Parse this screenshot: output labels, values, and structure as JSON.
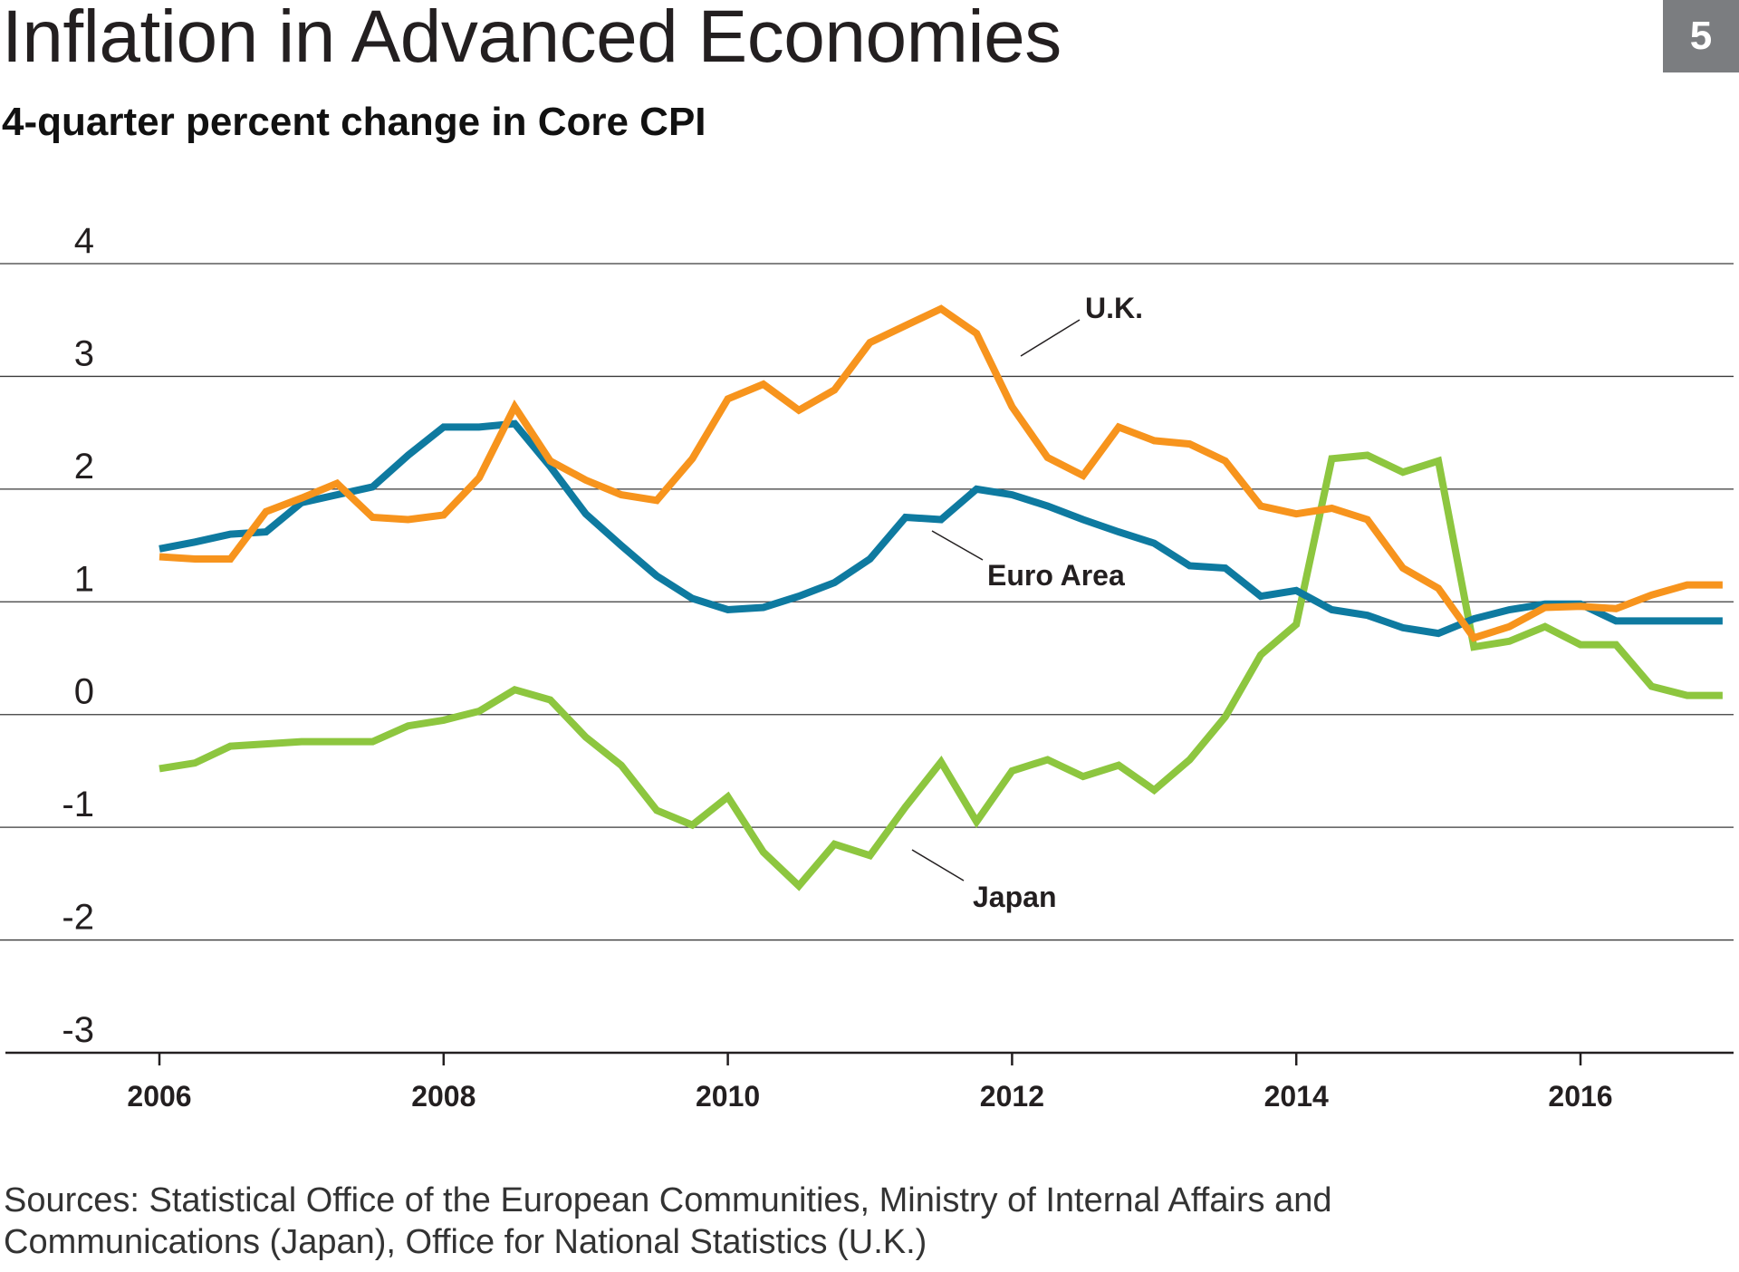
{
  "header": {
    "title": "Inflation in Advanced Economies",
    "subtitle": "4-quarter percent change in Core CPI",
    "badge": "5"
  },
  "footer": {
    "sources": "Sources: Statistical Office of the European Communities, Ministry of Internal Affairs and Communications (Japan), Office for National Statistics (U.K.)"
  },
  "chart_data": {
    "type": "line",
    "title": "Inflation in Advanced Economies",
    "subtitle": "4-quarter percent change in Core CPI",
    "xlabel": "",
    "ylabel": "",
    "xlim": [
      2005.45,
      2017.1
    ],
    "ylim": [
      -3,
      4
    ],
    "yticks": [
      4,
      3,
      2,
      1,
      0,
      -1,
      -2,
      -3
    ],
    "xticks": [
      "2006",
      "2008",
      "2010",
      "2012",
      "2014",
      "2016"
    ],
    "grid": "horizontal",
    "legend": "inline labels",
    "series": [
      {
        "name": "U.K.",
        "color": "#f7941d",
        "x": [
          2006.0,
          2006.25,
          2006.5,
          2006.75,
          2007.0,
          2007.25,
          2007.5,
          2007.75,
          2008.0,
          2008.25,
          2008.5,
          2008.75,
          2009.0,
          2009.25,
          2009.5,
          2009.75,
          2010.0,
          2010.25,
          2010.5,
          2010.75,
          2011.0,
          2011.25,
          2011.5,
          2011.75,
          2012.0,
          2012.25,
          2012.5,
          2012.75,
          2013.0,
          2013.25,
          2013.5,
          2013.75,
          2014.0,
          2014.25,
          2014.5,
          2014.75,
          2015.0,
          2015.25,
          2015.5,
          2015.75,
          2016.0,
          2016.25,
          2016.5,
          2016.75,
          2017.0
        ],
        "values": [
          1.4,
          1.38,
          1.38,
          1.8,
          1.92,
          2.05,
          1.75,
          1.73,
          1.77,
          2.1,
          2.73,
          2.25,
          2.08,
          1.95,
          1.9,
          2.27,
          2.8,
          2.93,
          2.7,
          2.88,
          3.3,
          3.45,
          3.6,
          3.38,
          2.73,
          2.28,
          2.12,
          2.55,
          2.43,
          2.4,
          2.25,
          1.85,
          1.78,
          1.83,
          1.73,
          1.3,
          1.12,
          0.68,
          0.78,
          0.95,
          0.96,
          0.94,
          1.06,
          1.15,
          1.15
        ]
      },
      {
        "name": "Euro Area",
        "color": "#0e7aa0",
        "x": [
          2006.0,
          2006.25,
          2006.5,
          2006.75,
          2007.0,
          2007.25,
          2007.5,
          2007.75,
          2008.0,
          2008.25,
          2008.5,
          2008.75,
          2009.0,
          2009.25,
          2009.5,
          2009.75,
          2010.0,
          2010.25,
          2010.5,
          2010.75,
          2011.0,
          2011.25,
          2011.5,
          2011.75,
          2012.0,
          2012.25,
          2012.5,
          2012.75,
          2013.0,
          2013.25,
          2013.5,
          2013.75,
          2014.0,
          2014.25,
          2014.5,
          2014.75,
          2015.0,
          2015.25,
          2015.5,
          2015.75,
          2016.0,
          2016.25,
          2016.5,
          2016.75,
          2017.0
        ],
        "values": [
          1.47,
          1.53,
          1.6,
          1.62,
          1.88,
          1.95,
          2.02,
          2.3,
          2.55,
          2.55,
          2.58,
          2.2,
          1.78,
          1.5,
          1.23,
          1.03,
          0.93,
          0.95,
          1.05,
          1.17,
          1.38,
          1.75,
          1.73,
          2.0,
          1.95,
          1.85,
          1.73,
          1.62,
          1.52,
          1.32,
          1.3,
          1.05,
          1.1,
          0.93,
          0.88,
          0.77,
          0.72,
          0.85,
          0.93,
          0.98,
          0.98,
          0.83,
          0.83,
          0.83,
          0.83
        ]
      },
      {
        "name": "Japan",
        "color": "#8dc63f",
        "x": [
          2006.0,
          2006.25,
          2006.5,
          2006.75,
          2007.0,
          2007.25,
          2007.5,
          2007.75,
          2008.0,
          2008.25,
          2008.5,
          2008.75,
          2009.0,
          2009.25,
          2009.5,
          2009.75,
          2010.0,
          2010.25,
          2010.5,
          2010.75,
          2011.0,
          2011.25,
          2011.5,
          2011.75,
          2012.0,
          2012.25,
          2012.5,
          2012.75,
          2013.0,
          2013.25,
          2013.5,
          2013.75,
          2014.0,
          2014.25,
          2014.5,
          2014.75,
          2015.0,
          2015.25,
          2015.5,
          2015.75,
          2016.0,
          2016.25,
          2016.5,
          2016.75,
          2017.0
        ],
        "values": [
          -0.48,
          -0.43,
          -0.28,
          -0.26,
          -0.24,
          -0.24,
          -0.24,
          -0.1,
          -0.05,
          0.03,
          0.22,
          0.13,
          -0.2,
          -0.45,
          -0.85,
          -0.98,
          -0.73,
          -1.22,
          -1.52,
          -1.15,
          -1.25,
          -0.82,
          -0.42,
          -0.95,
          -0.5,
          -0.4,
          -0.55,
          -0.45,
          -0.67,
          -0.4,
          -0.02,
          0.53,
          0.8,
          2.27,
          2.3,
          2.15,
          2.25,
          0.6,
          0.65,
          0.78,
          0.62,
          0.62,
          0.25,
          0.17,
          0.17
        ]
      }
    ],
    "annotations": [
      "U.K.",
      "Euro Area",
      "Japan"
    ]
  }
}
